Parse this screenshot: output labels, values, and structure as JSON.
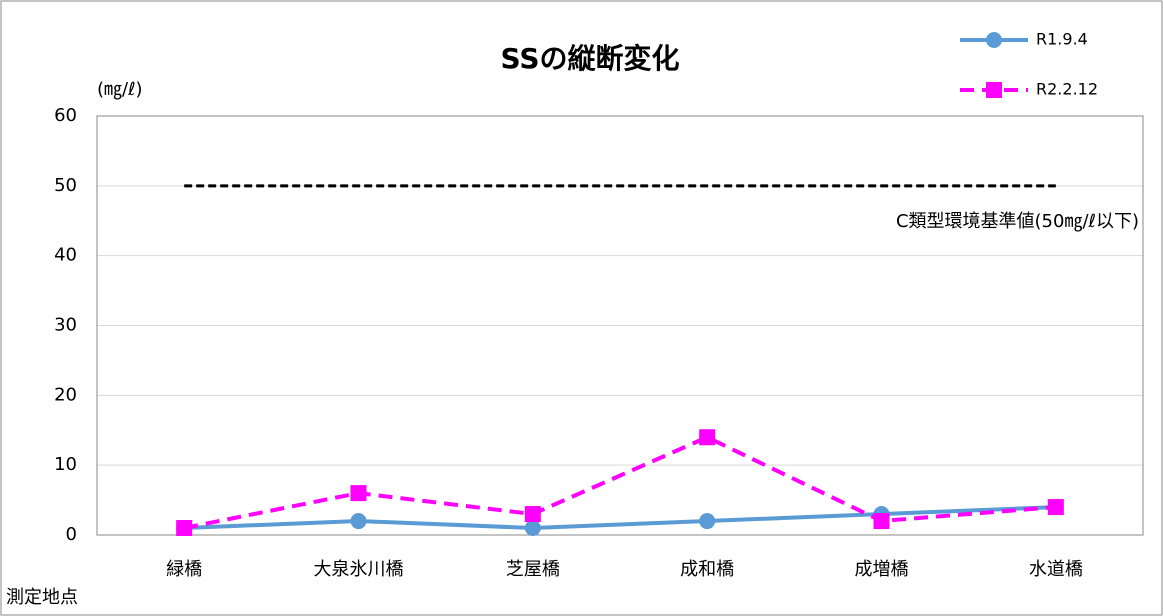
{
  "chart_data": {
    "type": "line",
    "title": "SSの縦断変化",
    "y_unit": "(㎎/ℓ)",
    "x_label": "測定地点",
    "categories": [
      "緑橋",
      "大泉氷川橋",
      "芝屋橋",
      "成和橋",
      "成増橋",
      "水道橋"
    ],
    "series": [
      {
        "name": "R1.9.4",
        "color": "#5b9bd5",
        "dashed": false,
        "marker": "circle",
        "values": [
          1,
          2,
          1,
          2,
          3,
          4
        ]
      },
      {
        "name": "R2.2.12",
        "color": "#ff00ff",
        "dashed": true,
        "marker": "square",
        "values": [
          1,
          6,
          3,
          14,
          2,
          4
        ]
      }
    ],
    "reference_line": {
      "value": 50,
      "label": "C類型環境基準値(50㎎/ℓ以下)",
      "color": "#000000"
    },
    "ylim": [
      0,
      60
    ],
    "yticks": [
      0,
      10,
      20,
      30,
      40,
      50,
      60
    ],
    "grid": true,
    "legend": "top-right"
  }
}
